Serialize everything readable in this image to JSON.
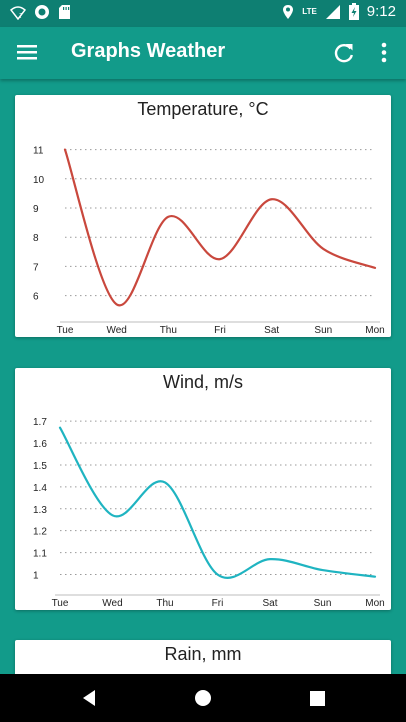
{
  "status_bar": {
    "time": "9:12",
    "network": "LTE",
    "icons": [
      "wifi-question-icon",
      "circle-app-icon",
      "sd-card-icon",
      "location-icon",
      "signal-icon",
      "battery-charging-icon"
    ]
  },
  "app_bar": {
    "title": "Graphs Weather",
    "icons": [
      "hamburger-menu-icon",
      "refresh-icon",
      "more-vert-icon"
    ]
  },
  "colors": {
    "primary": "#129b8a",
    "primary_dark": "#0e7f72",
    "temperature_line": "#c9483d",
    "wind_line": "#1fb4c1"
  },
  "charts": [
    {
      "title": "Temperature, °C",
      "chart_data": {
        "type": "line",
        "categories": [
          "Tue",
          "Wed",
          "Thu",
          "Fri",
          "Sat",
          "Sun",
          "Mon"
        ],
        "yticks": [
          "6",
          "7",
          "8",
          "9",
          "10",
          "11"
        ],
        "ylim": [
          5.2,
          11.5
        ],
        "series": [
          {
            "values": [
              11,
              5.7,
              8.7,
              7.25,
              9.3,
              7.6,
              6.95
            ],
            "color": "#c9483d"
          }
        ],
        "grid": true
      }
    },
    {
      "title": "Wind, m/s",
      "chart_data": {
        "type": "line",
        "categories": [
          "Tue",
          "Wed",
          "Thu",
          "Fri",
          "Sat",
          "Sun",
          "Mon"
        ],
        "yticks": [
          "1",
          "1.1",
          "1.2",
          "1.3",
          "1.4",
          "1.5",
          "1.6",
          "1.7"
        ],
        "ylim": [
          0.92,
          1.76
        ],
        "series": [
          {
            "values": [
              1.67,
              1.27,
              1.42,
              1.0,
              1.07,
              1.02,
              0.99
            ],
            "color": "#1fb4c1"
          }
        ],
        "grid": true
      }
    },
    {
      "title": "Rain, mm"
    }
  ],
  "nav_bar": {
    "icons": [
      "back-icon",
      "home-icon",
      "recents-icon"
    ]
  }
}
